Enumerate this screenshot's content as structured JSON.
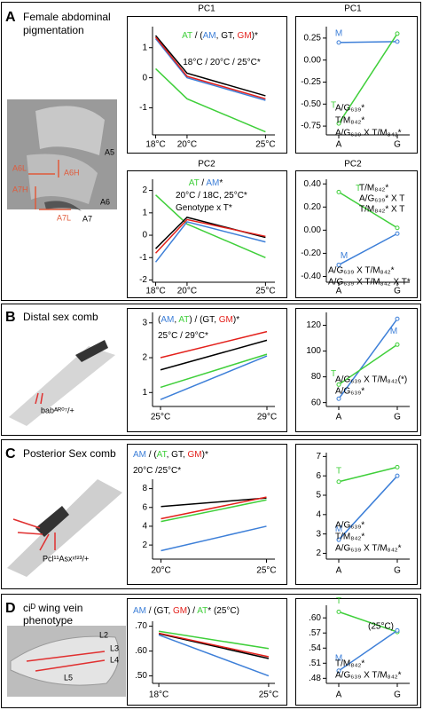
{
  "panels": [
    {
      "letter": "A",
      "title": [
        "Female abdominal",
        "pigmentation"
      ],
      "image_labels": [
        "A5",
        "A6",
        "A7",
        "A6L",
        "A7H",
        "A7L",
        "A6H"
      ]
    },
    {
      "letter": "B",
      "title": [
        "Distal sex comb"
      ],
      "image_labels": [
        "babᴬᴿ⁰⁷/+"
      ]
    },
    {
      "letter": "C",
      "title": [
        "Posterior Sex comb"
      ],
      "image_labels": [
        "Pcl¹¹Asxˣᶠ²³/+"
      ]
    },
    {
      "letter": "D",
      "title": [
        "ciᴰ wing vein",
        "phenotype"
      ],
      "image_labels": [
        "L2",
        "L3",
        "L4",
        "L5"
      ]
    }
  ],
  "chart_data": [
    {
      "type": "line",
      "title": "PC1",
      "x": [
        18,
        20,
        25
      ],
      "xlim": [
        17.8,
        25.6
      ],
      "xticks": [
        {
          "value": 18,
          "label": "18°C"
        },
        {
          "value": 20,
          "label": "20°C"
        },
        {
          "value": 25,
          "label": "25°C"
        }
      ],
      "ylim": [
        -1.9,
        1.7
      ],
      "yticks": [
        -1,
        0,
        1
      ],
      "series": [
        {
          "color": "#3fcf3a",
          "values": [
            0.3,
            -0.7,
            -1.8
          ]
        },
        {
          "color": "#3d7fd8",
          "values": [
            1.3,
            0.0,
            -0.75
          ]
        },
        {
          "color": "#000000",
          "values": [
            1.4,
            0.15,
            -0.6
          ]
        },
        {
          "color": "#e3201b",
          "values": [
            1.35,
            0.05,
            -0.7
          ]
        }
      ],
      "annotations": [
        [
          {
            "text": "AT",
            "color": "#3fcf3a"
          },
          {
            "text": " / (",
            "color": "#000000"
          },
          {
            "text": "AM",
            "color": "#3d7fd8"
          },
          {
            "text": ", ",
            "color": "#000000"
          },
          {
            "text": "GT",
            "color": "#000000"
          },
          {
            "text": ", ",
            "color": "#000000"
          },
          {
            "text": "GM",
            "color": "#e3201b"
          },
          {
            "text": ")*",
            "color": "#000000"
          }
        ],
        [
          {
            "text": "18°C / 20°C / 25°C*",
            "color": "#000000"
          }
        ]
      ]
    },
    {
      "type": "line",
      "title": "PC1",
      "categories": [
        "A",
        "G"
      ],
      "ylim": [
        -0.85,
        0.38
      ],
      "yticks": [
        -0.75,
        {
          "value": -0.5,
          "label": "-0.50"
        },
        -0.25,
        {
          "value": 0,
          "label": "0.00"
        },
        0.25
      ],
      "series": [
        {
          "name": "M",
          "color": "#3d7fd8",
          "values": [
            0.2,
            0.21
          ]
        },
        {
          "name": "T",
          "color": "#3fcf3a",
          "values": [
            -0.72,
            0.3
          ]
        }
      ],
      "annotations": [
        "A/G₆₃₉*",
        "T/M₈₄₂*",
        "A/G₆₃₉ X T/M₈₄₂*"
      ]
    },
    {
      "type": "line",
      "title": "PC2",
      "x": [
        18,
        20,
        25
      ],
      "xlim": [
        17.8,
        25.6
      ],
      "xticks": [
        {
          "value": 18,
          "label": "18°C"
        },
        {
          "value": 20,
          "label": "20°C"
        },
        {
          "value": 25,
          "label": "25°C"
        }
      ],
      "ylim": [
        -2.1,
        2.5
      ],
      "yticks": [
        -2,
        -1,
        0,
        1,
        2
      ],
      "series": [
        {
          "color": "#3fcf3a",
          "values": [
            1.8,
            0.5,
            -1.0
          ]
        },
        {
          "color": "#3d7fd8",
          "values": [
            -1.2,
            0.6,
            -0.3
          ]
        },
        {
          "color": "#000000",
          "values": [
            -0.6,
            0.8,
            -0.1
          ]
        },
        {
          "color": "#e3201b",
          "values": [
            -0.8,
            0.7,
            -0.05
          ]
        }
      ],
      "annotations": [
        [
          {
            "text": "AT",
            "color": "#3fcf3a"
          },
          {
            "text": " / ",
            "color": "#000000"
          },
          {
            "text": "AM",
            "color": "#3d7fd8"
          },
          {
            "text": "*",
            "color": "#000000"
          }
        ],
        [
          {
            "text": "20°C / 18C, 25°C*",
            "color": "#000000"
          }
        ],
        [
          {
            "text": "Genotype x T*",
            "color": "#000000"
          }
        ]
      ]
    },
    {
      "type": "line",
      "title": "PC2",
      "categories": [
        "A",
        "G"
      ],
      "ylim": [
        -0.45,
        0.44
      ],
      "yticks": [
        {
          "value": -0.4,
          "label": "-0.40"
        },
        {
          "value": -0.2,
          "label": "-0.20"
        },
        {
          "value": 0,
          "label": "0.00"
        },
        {
          "value": 0.2,
          "label": "0.20"
        },
        {
          "value": 0.4,
          "label": "0.40"
        }
      ],
      "series": [
        {
          "name": "M",
          "color": "#3d7fd8",
          "values": [
            -0.3,
            -0.03
          ]
        },
        {
          "name": "T",
          "color": "#3fcf3a",
          "values": [
            0.33,
            0.02
          ]
        }
      ],
      "annotations": [
        "T/M₈₄₂*",
        "A/G₆₃₉* X T",
        "T/M₈₄₂* X T",
        "A/G₆₃₉ X T/M₈₄₂*",
        "A/G₆₃₉ X T/M₈₄₂ X T*"
      ]
    },
    {
      "type": "line",
      "x": [
        25,
        29
      ],
      "xlim": [
        24.7,
        29.3
      ],
      "xticks": [
        {
          "value": 25,
          "label": "25°C"
        },
        {
          "value": 29,
          "label": "29°C"
        }
      ],
      "ylim": [
        0.6,
        3.3
      ],
      "yticks": [
        1,
        2,
        3
      ],
      "series": [
        {
          "color": "#e3201b",
          "values": [
            2.0,
            2.75
          ]
        },
        {
          "color": "#000000",
          "values": [
            1.65,
            2.5
          ]
        },
        {
          "color": "#3fcf3a",
          "values": [
            1.15,
            2.1
          ]
        },
        {
          "color": "#3d7fd8",
          "values": [
            0.8,
            2.05
          ]
        }
      ],
      "annotations": [
        [
          {
            "text": "(",
            "color": "#000000"
          },
          {
            "text": "AM",
            "color": "#3d7fd8"
          },
          {
            "text": ", ",
            "color": "#000000"
          },
          {
            "text": "AT",
            "color": "#3fcf3a"
          },
          {
            "text": ") / (",
            "color": "#000000"
          },
          {
            "text": "GT",
            "color": "#000000"
          },
          {
            "text": ", ",
            "color": "#000000"
          },
          {
            "text": "GM",
            "color": "#e3201b"
          },
          {
            "text": ")*",
            "color": "#000000"
          }
        ],
        [
          {
            "text": "25°C / 29°C*",
            "color": "#000000"
          }
        ]
      ]
    },
    {
      "type": "line",
      "categories": [
        "A",
        "G"
      ],
      "ylim": [
        57,
        130
      ],
      "yticks": [
        60,
        80,
        100,
        120
      ],
      "series": [
        {
          "name": "M",
          "color": "#3d7fd8",
          "values": [
            63,
            125
          ]
        },
        {
          "name": "T",
          "color": "#3fcf3a",
          "values": [
            74,
            105
          ]
        }
      ],
      "annotations": [
        "A/G₆₃₉ X T/M₈₄₂(*)",
        "A/G₆₃₉*"
      ]
    },
    {
      "type": "line",
      "x": [
        20,
        25
      ],
      "xlim": [
        19.6,
        25.4
      ],
      "xticks": [
        {
          "value": 20,
          "label": "20°C"
        },
        {
          "value": 25,
          "label": "25°C"
        }
      ],
      "ylim": [
        0.5,
        9.0
      ],
      "yticks": [
        2,
        4,
        6,
        8
      ],
      "series": [
        {
          "color": "#000000",
          "values": [
            6.1,
            7.0
          ]
        },
        {
          "color": "#e3201b",
          "values": [
            4.8,
            7.1
          ]
        },
        {
          "color": "#3fcf3a",
          "values": [
            4.5,
            6.8
          ]
        },
        {
          "color": "#3d7fd8",
          "values": [
            1.4,
            4.0
          ]
        }
      ],
      "annotations": [
        [
          {
            "text": "AM",
            "color": "#3d7fd8"
          },
          {
            "text": " / (",
            "color": "#000000"
          },
          {
            "text": "AT",
            "color": "#3fcf3a"
          },
          {
            "text": ", ",
            "color": "#000000"
          },
          {
            "text": "GT",
            "color": "#000000"
          },
          {
            "text": ", ",
            "color": "#000000"
          },
          {
            "text": "GM",
            "color": "#e3201b"
          },
          {
            "text": ")*",
            "color": "#000000"
          }
        ],
        [
          {
            "text": "20°C /25°C*",
            "color": "#000000"
          }
        ]
      ]
    },
    {
      "type": "line",
      "categories": [
        "A",
        "G"
      ],
      "ylim": [
        1.7,
        7.2
      ],
      "yticks": [
        2,
        3,
        4,
        5,
        6,
        7
      ],
      "series": [
        {
          "name": "T",
          "color": "#3fcf3a",
          "values": [
            5.7,
            6.45
          ]
        },
        {
          "name": "M",
          "color": "#3d7fd8",
          "values": [
            2.7,
            6.0
          ]
        }
      ],
      "annotations": [
        "A/G₆₃₉*",
        "T/M₈₄₂*",
        "A/G₆₃₉ X T/M₈₄₂*"
      ]
    },
    {
      "type": "line",
      "x": [
        18,
        25
      ],
      "xlim": [
        17.6,
        25.4
      ],
      "xticks": [
        {
          "value": 18,
          "label": "18°C"
        },
        {
          "value": 25,
          "label": "25°C"
        }
      ],
      "ylim": [
        0.47,
        0.72
      ],
      "yticks": [
        {
          "value": 0.5,
          "label": ".50"
        },
        {
          "value": 0.6,
          "label": ".60"
        },
        {
          "value": 0.7,
          "label": ".70"
        }
      ],
      "series": [
        {
          "color": "#3fcf3a",
          "values": [
            0.68,
            0.61
          ]
        },
        {
          "color": "#000000",
          "values": [
            0.67,
            0.57
          ]
        },
        {
          "color": "#e3201b",
          "values": [
            0.672,
            0.577
          ]
        },
        {
          "color": "#3d7fd8",
          "values": [
            0.665,
            0.5
          ]
        }
      ],
      "annotations": [
        [
          {
            "text": "AM",
            "color": "#3d7fd8"
          },
          {
            "text": " / (",
            "color": "#000000"
          },
          {
            "text": "GT",
            "color": "#000000"
          },
          {
            "text": ", ",
            "color": "#000000"
          },
          {
            "text": "GM",
            "color": "#e3201b"
          },
          {
            "text": ") / ",
            "color": "#000000"
          },
          {
            "text": "AT",
            "color": "#3fcf3a"
          },
          {
            "text": "* (25°C)",
            "color": "#000000"
          }
        ]
      ]
    },
    {
      "type": "line",
      "categories": [
        "A",
        "G"
      ],
      "ylim": [
        0.47,
        0.625
      ],
      "yticks": [
        {
          "value": 0.48,
          "label": ".48"
        },
        {
          "value": 0.51,
          "label": ".51"
        },
        {
          "value": 0.54,
          "label": ".54"
        },
        {
          "value": 0.57,
          "label": ".57"
        },
        {
          "value": 0.6,
          "label": ".60"
        }
      ],
      "series": [
        {
          "name": "T",
          "color": "#3fcf3a",
          "values": [
            0.612,
            0.572
          ]
        },
        {
          "name": "M",
          "color": "#3d7fd8",
          "values": [
            0.495,
            0.575
          ]
        }
      ],
      "annotations": [
        "(25°C)",
        "T/M₈₄₂*",
        "A/G₆₃₉ X T/M₈₄₂*"
      ]
    }
  ]
}
